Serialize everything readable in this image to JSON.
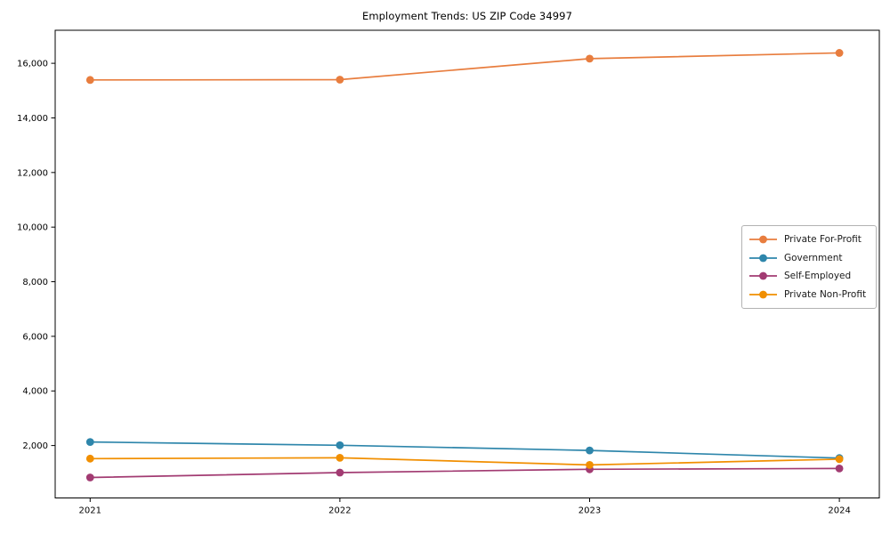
{
  "chart_data": {
    "type": "line",
    "title": "Employment Trends: US ZIP Code 34997",
    "xlabel": "",
    "ylabel": "",
    "grid": false,
    "legend_position": "center right",
    "background_color": "#ffffff",
    "spine_color": "#000000",
    "legend_border_color": "#b3b3b3",
    "x": [
      2021,
      2022,
      2023,
      2024
    ],
    "x_tick_labels": [
      "2021",
      "2022",
      "2023",
      "2024"
    ],
    "y_ticks": [
      {
        "value": 2000,
        "label": "2,000"
      },
      {
        "value": 4000,
        "label": "4,000"
      },
      {
        "value": 6000,
        "label": "6,000"
      },
      {
        "value": 8000,
        "label": "8,000"
      },
      {
        "value": 10000,
        "label": "10,000"
      },
      {
        "value": 12000,
        "label": "12,000"
      },
      {
        "value": 14000,
        "label": "14,000"
      },
      {
        "value": 16000,
        "label": "16,000"
      }
    ],
    "ylim": [
      80,
      17210
    ],
    "xlim": [
      2020.86,
      2024.16
    ],
    "series": [
      {
        "name": "Private For-Profit",
        "color": "#E87D3E",
        "values": [
          15390,
          15400,
          16170,
          16380
        ]
      },
      {
        "name": "Government",
        "color": "#2E86AB",
        "values": [
          2130,
          2010,
          1820,
          1540
        ]
      },
      {
        "name": "Self-Employed",
        "color": "#A23B72",
        "values": [
          830,
          1010,
          1130,
          1160
        ]
      },
      {
        "name": "Private Non-Profit",
        "color": "#F18F01",
        "values": [
          1520,
          1550,
          1290,
          1500
        ]
      }
    ]
  }
}
